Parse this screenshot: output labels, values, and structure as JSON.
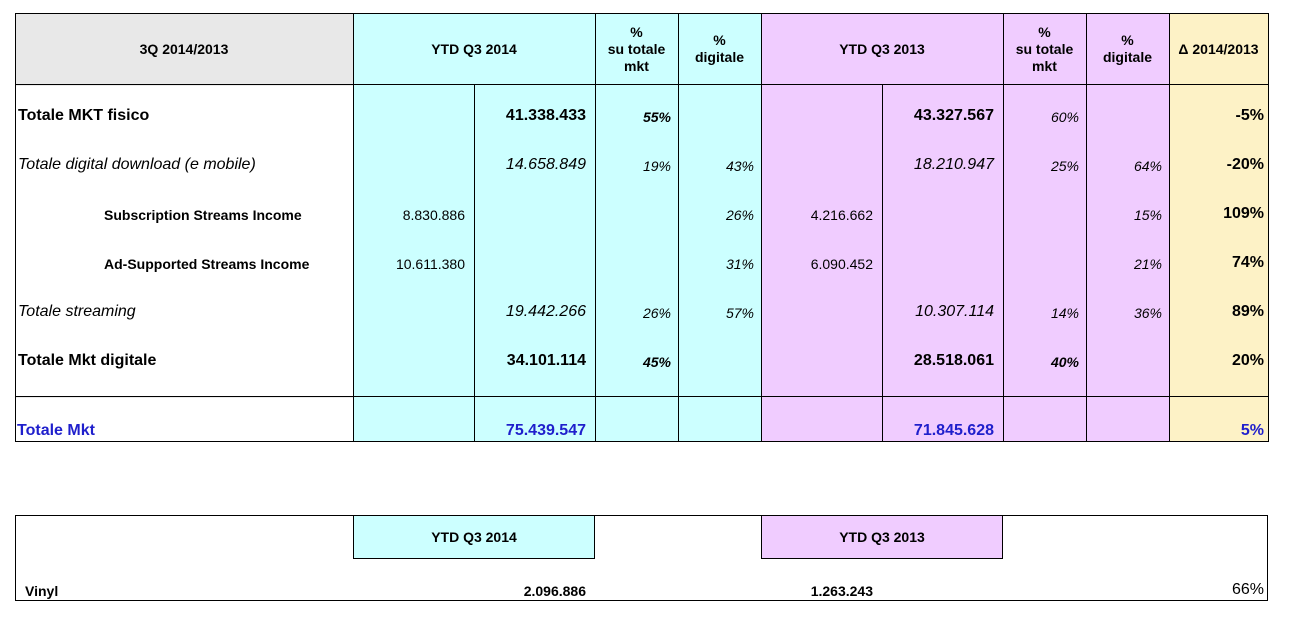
{
  "table1": {
    "header": {
      "period": "3Q 2014/2013",
      "ytd2014": "YTD Q3 2014",
      "pct_tot_2014": "%\nsu totale\nmkt",
      "pct_dig_2014": "%\ndigitale",
      "ytd2013": "YTD Q3 2013",
      "pct_tot_2013": "%\nsu totale\nmkt",
      "pct_dig_2013": "%\ndigitale",
      "delta": "Δ 2014/2013"
    },
    "rows": [
      {
        "label": "Totale MKT fisico",
        "sub2014": "",
        "tot2014": "41.338.433",
        "pt2014": "55%",
        "pd2014": "",
        "sub2013": "",
        "tot2013": "43.327.567",
        "pt2013": "60%",
        "pd2013": "",
        "delta": "-5%"
      },
      {
        "label": "Totale digital download  (e mobile)",
        "sub2014": "",
        "tot2014": "14.658.849",
        "pt2014": "19%",
        "pd2014": "43%",
        "sub2013": "",
        "tot2013": "18.210.947",
        "pt2013": "25%",
        "pd2013": "64%",
        "delta": "-20%"
      },
      {
        "label": "Subscription Streams Income",
        "sub2014": "8.830.886",
        "tot2014": "",
        "pt2014": "",
        "pd2014": "26%",
        "sub2013": "4.216.662",
        "tot2013": "",
        "pt2013": "",
        "pd2013": "15%",
        "delta": "109%"
      },
      {
        "label": "Ad-Supported Streams Income",
        "sub2014": "10.611.380",
        "tot2014": "",
        "pt2014": "",
        "pd2014": "31%",
        "sub2013": "6.090.452",
        "tot2013": "",
        "pt2013": "",
        "pd2013": "21%",
        "delta": "74%"
      },
      {
        "label": "Totale streaming",
        "sub2014": "",
        "tot2014": "19.442.266",
        "pt2014": "26%",
        "pd2014": "57%",
        "sub2013": "",
        "tot2013": "10.307.114",
        "pt2013": "14%",
        "pd2013": "36%",
        "delta": "89%"
      },
      {
        "label": "Totale Mkt digitale",
        "sub2014": "",
        "tot2014": "34.101.114",
        "pt2014": "45%",
        "pd2014": "",
        "sub2013": "",
        "tot2013": "28.518.061",
        "pt2013": "40%",
        "pd2013": "",
        "delta": "20%"
      }
    ],
    "total": {
      "label": "Totale Mkt",
      "tot2014": "75.439.547",
      "tot2013": "71.845.628",
      "delta": "5%"
    }
  },
  "table2": {
    "ytd2014": "YTD Q3 2014",
    "ytd2013": "YTD Q3 2013",
    "label": "Vinyl",
    "val2014": "2.096.886",
    "val2013": "1.263.243",
    "pct": "66%"
  }
}
